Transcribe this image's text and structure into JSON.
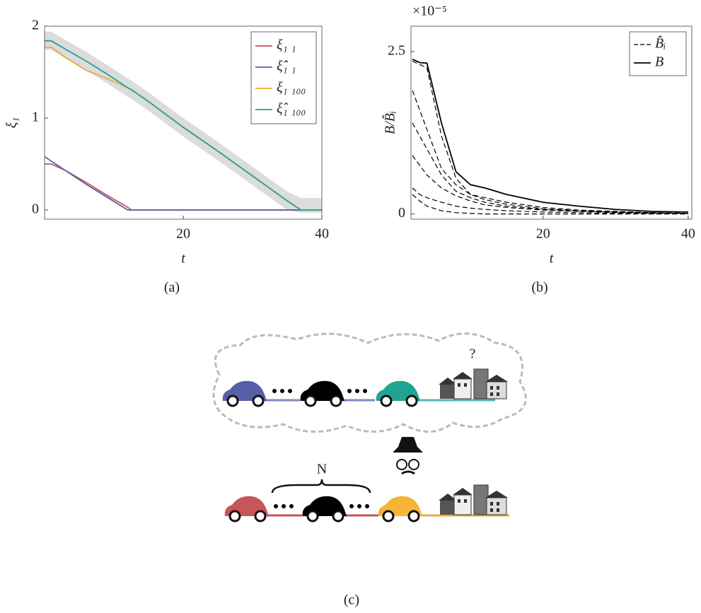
{
  "chart_data": [
    {
      "type": "line",
      "xlabel": "t",
      "ylabel": "ξ₁",
      "x": [
        0,
        1,
        3,
        6,
        9,
        12,
        12.5,
        15,
        20,
        25,
        30,
        35,
        37,
        40
      ],
      "xlim": [
        0,
        40
      ],
      "ylim": [
        -0.1,
        2
      ],
      "xticks": [
        20,
        40
      ],
      "yticks": [
        0,
        1,
        2
      ],
      "legend": "upper right",
      "band": {
        "color": "#dcdcdc",
        "upper": [
          1.94,
          1.94,
          1.85,
          1.72,
          1.58,
          1.43,
          1.41,
          1.28,
          1.0,
          0.74,
          0.47,
          0.2,
          0.13,
          0.13
        ],
        "lower": [
          1.74,
          1.74,
          1.65,
          1.52,
          1.38,
          1.23,
          1.21,
          1.08,
          0.8,
          0.54,
          0.27,
          0.0,
          -0.03,
          -0.03
        ]
      },
      "series": [
        {
          "name": "ξ₁ ₁",
          "color": "#c8555a",
          "values": [
            0.5,
            0.5,
            0.43,
            0.3,
            0.16,
            0.03,
            0,
            0,
            0,
            0,
            0,
            0,
            0,
            0
          ]
        },
        {
          "name": "ξ̂₁ ₁",
          "color": "#5560a8",
          "values": [
            0.58,
            0.53,
            0.43,
            0.28,
            0.14,
            0,
            0,
            0,
            0,
            0,
            0,
            0,
            0,
            0
          ]
        },
        {
          "name": "ξ₁ ₁₀₀",
          "color": "#e8ad3a",
          "values": [
            1.77,
            1.77,
            1.66,
            1.52,
            1.43,
            1.33,
            1.31,
            1.18,
            0.9,
            0.64,
            0.37,
            0.1,
            0,
            0
          ]
        },
        {
          "name": "ξ̂₁ ₁₀₀",
          "color": "#21a394",
          "values": [
            1.84,
            1.84,
            1.75,
            1.62,
            1.48,
            1.33,
            1.31,
            1.18,
            0.9,
            0.64,
            0.37,
            0.1,
            0,
            0
          ]
        }
      ]
    },
    {
      "type": "line",
      "xlabel": "t",
      "ylabel": "B/B̂ᵢ",
      "multiplier": "×10⁻⁵",
      "x": [
        2,
        3,
        4,
        6,
        8,
        10,
        12,
        15,
        20,
        25,
        30,
        35,
        40
      ],
      "xlim": [
        1.8,
        40.5
      ],
      "ylim": [
        -0.08,
        2.89
      ],
      "xticks": [
        20,
        40
      ],
      "yticks": [
        0,
        2.5
      ],
      "legend": "upper right",
      "series": [
        {
          "name": "B̂ᵢ",
          "color": "#000000",
          "dash": true,
          "values": [
            2.35,
            2.3,
            2.25,
            1.2,
            0.55,
            0.3,
            0.25,
            0.18,
            0.1,
            0.06,
            0.04,
            0.02,
            0.01
          ]
        },
        {
          "name": "B̂ᵢ",
          "color": "#000000",
          "dash": true,
          "values": [
            1.9,
            1.6,
            1.3,
            0.7,
            0.45,
            0.3,
            0.22,
            0.15,
            0.08,
            0.05,
            0.03,
            0.02,
            0.01
          ]
        },
        {
          "name": "B̂ᵢ",
          "color": "#000000",
          "dash": true,
          "values": [
            1.4,
            1.2,
            1.0,
            0.6,
            0.35,
            0.25,
            0.18,
            0.12,
            0.07,
            0.04,
            0.03,
            0.02,
            0.01
          ]
        },
        {
          "name": "B̂ᵢ",
          "color": "#000000",
          "dash": true,
          "values": [
            0.9,
            0.75,
            0.6,
            0.4,
            0.28,
            0.2,
            0.14,
            0.1,
            0.06,
            0.04,
            0.02,
            0.01,
            0.01
          ]
        },
        {
          "name": "B̂ᵢ",
          "color": "#000000",
          "dash": true,
          "values": [
            0.4,
            0.3,
            0.25,
            0.18,
            0.12,
            0.09,
            0.07,
            0.05,
            0.03,
            0.02,
            0.01,
            0.01,
            0
          ]
        },
        {
          "name": "B̂ᵢ",
          "color": "#000000",
          "dash": true,
          "values": [
            0.3,
            0.2,
            0.12,
            0.05,
            0.02,
            0.01,
            0,
            0,
            0,
            0,
            0,
            0,
            0
          ]
        },
        {
          "name": "B",
          "color": "#000000",
          "dash": false,
          "values": [
            2.38,
            2.33,
            2.32,
            1.4,
            0.65,
            0.45,
            0.4,
            0.3,
            0.18,
            0.12,
            0.07,
            0.04,
            0.03
          ]
        }
      ]
    }
  ],
  "captions": [
    "(a)",
    "(b)",
    "(c)"
  ],
  "diagram": {
    "group_label": "N",
    "question": "?"
  }
}
